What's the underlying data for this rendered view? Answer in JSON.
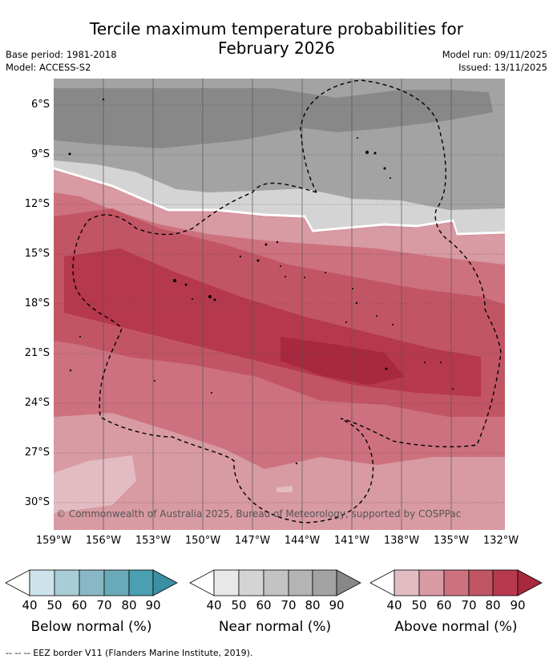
{
  "header": {
    "title_line1": "Tercile maximum temperature probabilities for",
    "title_line2": "February 2026",
    "base_period": "Base period: 1981-2018",
    "model": "Model: ACCESS-S2",
    "model_run": "Model run: 09/11/2025",
    "issued": "Issued: 13/11/2025"
  },
  "map": {
    "lat_labels": [
      "6°S",
      "9°S",
      "12°S",
      "15°S",
      "18°S",
      "21°S",
      "24°S",
      "27°S",
      "30°S"
    ],
    "lon_labels": [
      "159°W",
      "156°W",
      "153°W",
      "150°W",
      "147°W",
      "144°W",
      "141°W",
      "138°W",
      "135°W",
      "132°W"
    ],
    "copyright": "© Commonwealth of Australia 2025, Bureau of Meteorology, supported by COSPPac"
  },
  "legend": {
    "below": {
      "label": "Below normal (%)",
      "ticks": [
        "40",
        "50",
        "60",
        "70",
        "80",
        "90"
      ],
      "colors": [
        "#cde3ea",
        "#a9cdd6",
        "#88b8c5",
        "#6aa9b8",
        "#4a9fb1"
      ]
    },
    "near": {
      "label": "Near normal (%)",
      "ticks": [
        "40",
        "50",
        "60",
        "70",
        "80",
        "90"
      ],
      "colors": [
        "#e8e8e8",
        "#d4d4d4",
        "#c3c3c3",
        "#b4b4b4",
        "#a3a3a3"
      ]
    },
    "above": {
      "label": "Above normal (%)",
      "ticks": [
        "40",
        "50",
        "60",
        "70",
        "80",
        "90"
      ],
      "colors": [
        "#e3bcc3",
        "#d89aa3",
        "#cd717e",
        "#c25564",
        "#b6384c"
      ]
    }
  },
  "footer": {
    "eez": "-- -- -- EEZ border V11 (Flanders Marine Institute, 2019)."
  }
}
